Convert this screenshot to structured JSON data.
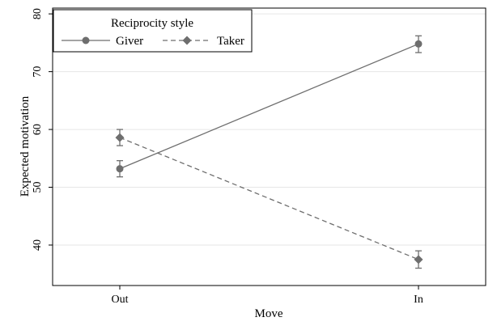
{
  "chart_data": {
    "type": "line",
    "title": "",
    "xlabel": "Move",
    "ylabel": "Expected motivation",
    "categories": [
      "Out",
      "In"
    ],
    "ylim": [
      33,
      81
    ],
    "yticks": [
      40,
      50,
      60,
      70,
      80
    ],
    "grid": "horizontal",
    "legend": {
      "title": "Reciprocity style",
      "placement": "top-left",
      "entries": [
        "Giver",
        "Taker"
      ]
    },
    "series": [
      {
        "name": "Giver",
        "values": [
          53.2,
          74.8
        ],
        "ci_low": [
          51.8,
          73.3
        ],
        "ci_high": [
          54.6,
          76.2
        ],
        "marker": "circle",
        "line_style": "solid"
      },
      {
        "name": "Taker",
        "values": [
          58.6,
          37.5
        ],
        "ci_low": [
          57.2,
          36.0
        ],
        "ci_high": [
          60.0,
          39.0
        ],
        "marker": "diamond",
        "line_style": "dashed"
      }
    ],
    "colors": {
      "series": "#6e6e6e",
      "grid": "#e6e6e6",
      "axis": "#000000",
      "background": "#ffffff"
    }
  }
}
